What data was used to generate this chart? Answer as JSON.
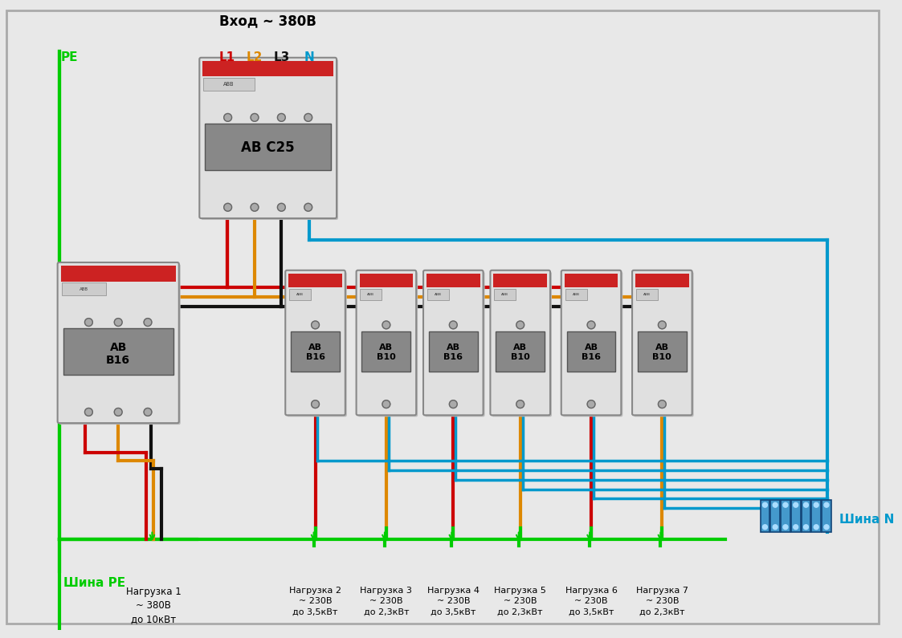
{
  "bg_color": "#e8e8e8",
  "border_color": "#aaaaaa",
  "wire_colors": {
    "PE": "#00cc00",
    "L1": "#cc0000",
    "L2": "#dd8800",
    "L3": "#111111",
    "N": "#0099cc"
  },
  "title": "Вход ~ 380В",
  "pe_label": "PE",
  "l1_label": "L1",
  "l2_label": "L2",
  "l3_label": "L3",
  "n_label": "N",
  "main_breaker_label": "АВ С25",
  "three_phase_breaker_label": "АВ\nВ16",
  "single_breaker_labels": [
    "АВ\nВ16",
    "АВ\nВ10",
    "АВ\nВ16",
    "АВ\nВ10",
    "АВ\nВ16",
    "АВ\nВ10"
  ],
  "shina_PE_label": "Шина PE",
  "shina_N_label": "Шина N",
  "load_labels": [
    "Нагрузка 1\n~ 380В\nдо 10кВт",
    "Нагрузка 2\n~ 230В\nдо 3,5кВт",
    "Нагрузка 3\n~ 230В\nдо 2,3кВт",
    "Нагрузка 4\n~ 230В\nдо 3,5кВт",
    "Нагрузка 5\n~ 230В\nдо 2,3кВт",
    "Нагрузка 6\n~ 230В\nдо 3,5кВт",
    "Нагрузка 7\n~ 230В\nдо 2,3кВт"
  ],
  "figsize": [
    11.23,
    7.95
  ],
  "dpi": 100
}
